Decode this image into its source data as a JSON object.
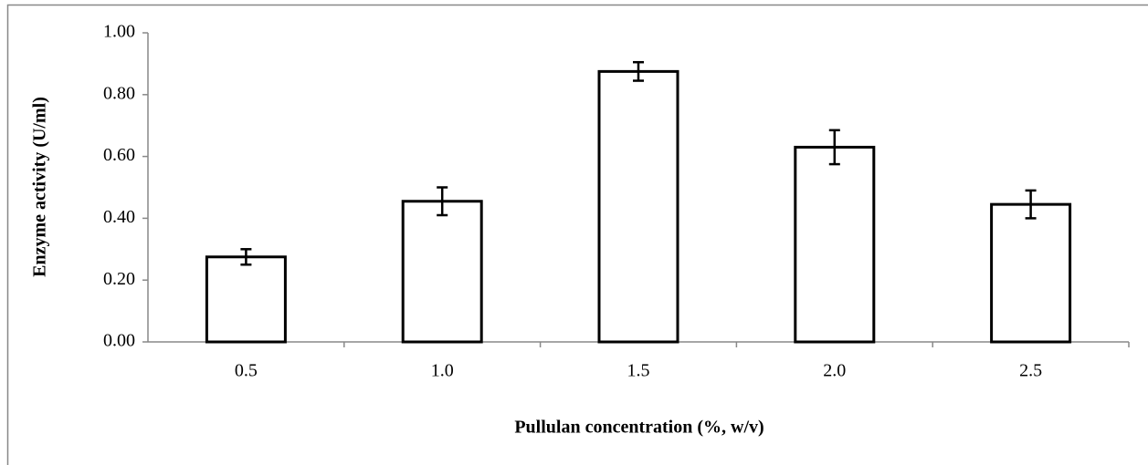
{
  "chart_data": {
    "type": "bar",
    "xlabel": "Pullulan concentration (%, w/v)",
    "ylabel": "Enzyme activity (U/ml)",
    "categories": [
      "0.5",
      "1.0",
      "1.5",
      "2.0",
      "2.5"
    ],
    "values": [
      0.275,
      0.455,
      0.875,
      0.63,
      0.445
    ],
    "errors": [
      0.025,
      0.045,
      0.03,
      0.055,
      0.045
    ],
    "color": "#ffffff",
    "edgecolor": "#000000",
    "ylim": [
      0,
      1
    ],
    "yticks": [
      {
        "value": 0,
        "label": "0.00"
      },
      {
        "value": 0.2,
        "label": "0.20"
      },
      {
        "value": 0.4,
        "label": "0.40"
      },
      {
        "value": 0.6,
        "label": "0.60"
      },
      {
        "value": 0.8,
        "label": "0.80"
      },
      {
        "value": 1,
        "label": "1.00"
      }
    ],
    "grid": false
  }
}
